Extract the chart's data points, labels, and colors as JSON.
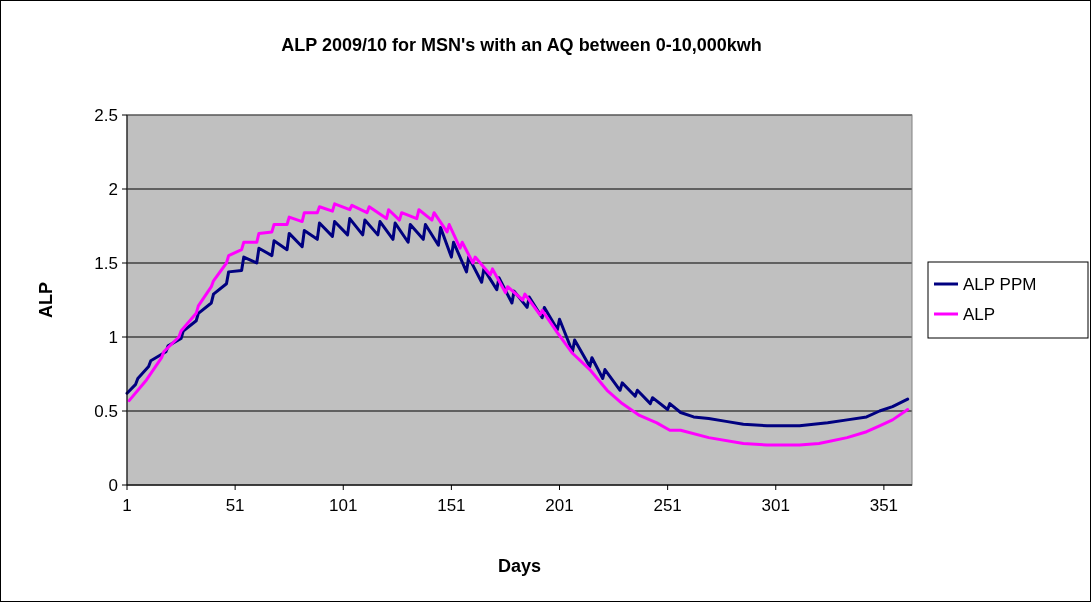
{
  "chart_data": {
    "type": "line",
    "title": "ALP 2009/10 for MSN's with an AQ between 0-10,000kwh",
    "xlabel": "Days",
    "ylabel": "ALP",
    "xlim": [
      1,
      364
    ],
    "xticks": [
      1,
      51,
      101,
      151,
      201,
      251,
      301,
      351
    ],
    "ylim": [
      0,
      2.5
    ],
    "yticks": [
      0,
      0.5,
      1,
      1.5,
      2,
      2.5
    ],
    "grid": "y",
    "legend": "right",
    "marker": "none",
    "line_style": "solid",
    "series": [
      {
        "name": "ALP PPM",
        "color": "#000080",
        "x": [
          1,
          5,
          6,
          11,
          12,
          19,
          20,
          26,
          27,
          33,
          34,
          40,
          41,
          47,
          48,
          54,
          55,
          61,
          62,
          68,
          69,
          75,
          76,
          82,
          83,
          89,
          90,
          96,
          97,
          103,
          104,
          110,
          111,
          117,
          118,
          124,
          125,
          131,
          132,
          138,
          139,
          145,
          146,
          151,
          152,
          158,
          159,
          165,
          166,
          172,
          173,
          179,
          180,
          186,
          187,
          193,
          194,
          200,
          201,
          207,
          208,
          215,
          216,
          221,
          222,
          229,
          230,
          236,
          237,
          243,
          244,
          251,
          252,
          257,
          263,
          270,
          278,
          286,
          297,
          312,
          325,
          334,
          343,
          349,
          355,
          362
        ],
        "values": [
          0.62,
          0.68,
          0.72,
          0.8,
          0.84,
          0.9,
          0.94,
          0.99,
          1.04,
          1.11,
          1.16,
          1.23,
          1.29,
          1.36,
          1.44,
          1.45,
          1.54,
          1.5,
          1.6,
          1.55,
          1.65,
          1.59,
          1.7,
          1.61,
          1.72,
          1.66,
          1.77,
          1.68,
          1.78,
          1.69,
          1.8,
          1.69,
          1.79,
          1.69,
          1.78,
          1.66,
          1.77,
          1.64,
          1.76,
          1.66,
          1.76,
          1.62,
          1.74,
          1.54,
          1.64,
          1.44,
          1.54,
          1.37,
          1.46,
          1.32,
          1.4,
          1.23,
          1.31,
          1.2,
          1.27,
          1.13,
          1.2,
          1.05,
          1.12,
          0.9,
          0.98,
          0.8,
          0.86,
          0.72,
          0.78,
          0.64,
          0.69,
          0.6,
          0.64,
          0.55,
          0.59,
          0.51,
          0.55,
          0.49,
          0.46,
          0.45,
          0.43,
          0.41,
          0.4,
          0.4,
          0.42,
          0.44,
          0.46,
          0.5,
          0.53,
          0.58
        ]
      },
      {
        "name": "ALP",
        "color": "#ff00ff",
        "x": [
          2,
          10,
          17,
          18,
          25,
          26,
          33,
          34,
          40,
          41,
          47,
          48,
          54,
          55,
          61,
          62,
          68,
          69,
          75,
          76,
          82,
          83,
          89,
          90,
          96,
          97,
          104,
          105,
          112,
          113,
          121,
          122,
          127,
          128,
          135,
          136,
          142,
          143,
          149,
          150,
          155,
          156,
          161,
          162,
          169,
          170,
          176,
          177,
          184,
          185,
          192,
          193,
          200,
          207,
          215,
          223,
          230,
          238,
          246,
          252,
          257,
          270,
          286,
          297,
          312,
          321,
          334,
          343,
          349,
          355,
          362
        ],
        "values": [
          0.57,
          0.71,
          0.86,
          0.9,
          1.0,
          1.04,
          1.16,
          1.21,
          1.34,
          1.38,
          1.5,
          1.55,
          1.59,
          1.64,
          1.64,
          1.7,
          1.71,
          1.76,
          1.76,
          1.81,
          1.78,
          1.84,
          1.84,
          1.88,
          1.85,
          1.9,
          1.86,
          1.89,
          1.84,
          1.88,
          1.8,
          1.86,
          1.79,
          1.84,
          1.8,
          1.86,
          1.79,
          1.84,
          1.71,
          1.76,
          1.6,
          1.64,
          1.5,
          1.54,
          1.42,
          1.46,
          1.3,
          1.34,
          1.25,
          1.29,
          1.15,
          1.18,
          1.03,
          0.89,
          0.78,
          0.64,
          0.55,
          0.47,
          0.42,
          0.37,
          0.37,
          0.32,
          0.28,
          0.27,
          0.27,
          0.28,
          0.32,
          0.36,
          0.4,
          0.44,
          0.51
        ]
      }
    ]
  }
}
